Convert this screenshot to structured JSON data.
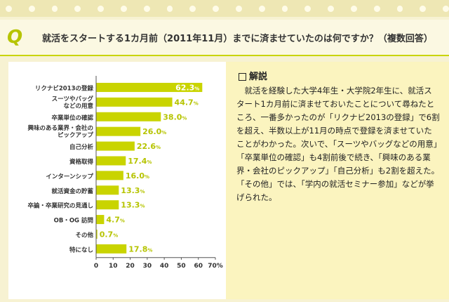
{
  "question": {
    "mark": "Q",
    "title": "就活をスタートする1カ月前（2011年11月）までに済ませていたのは何ですか？（複数回答）"
  },
  "explanation": {
    "heading": "解説",
    "body": "就活を経験した大学4年生・大学院2年生に、就活スタート1カ月前に済ませておいたことについて尋ねたところ、一番多かったのが「リクナビ2013の登録」で6割を超え、半数以上が11月の時点で登録を済ませていたことがわかった。次いで、「スーツやバッグなどの用意」「卒業単位の確認」も4割前後で続き、「興味のある業界・会社のピックアップ」「自己分析」も2割を超えた。「その他」では、「学内の就活セミナー参加」などが挙げられた。"
  },
  "colors": {
    "bar": "#c9d400",
    "accent_text": "#b6c400"
  },
  "chart_data": {
    "type": "bar",
    "orientation": "horizontal",
    "categories": [
      [
        "リクナビ2013の登録"
      ],
      [
        "スーツやバッグ",
        "などの用意"
      ],
      [
        "卒業単位の確認"
      ],
      [
        "興味のある業界・会社の",
        "ピックアップ"
      ],
      [
        "自己分析"
      ],
      [
        "資格取得"
      ],
      [
        "インターンシップ"
      ],
      [
        "就活資金の貯蓄"
      ],
      [
        "卒論・卒業研究の見通し"
      ],
      [
        "OB・OG 訪問"
      ],
      [
        "その他"
      ],
      [
        "特になし"
      ]
    ],
    "values": [
      62.3,
      44.7,
      38.0,
      26.0,
      22.6,
      17.4,
      16.0,
      13.3,
      13.3,
      4.7,
      0.7,
      17.8
    ],
    "value_labels": [
      "62.3",
      "44.7",
      "38.0",
      "26.0",
      "22.6",
      "17.4",
      "16.0",
      "13.3",
      "13.3",
      "4.7",
      "0.7",
      "17.8"
    ],
    "value_unit": "%",
    "xlim": [
      0,
      70
    ],
    "xticks": [
      "0",
      "10",
      "20",
      "30",
      "40",
      "50",
      "60"
    ],
    "xtick_last": "70%",
    "grid": false
  }
}
